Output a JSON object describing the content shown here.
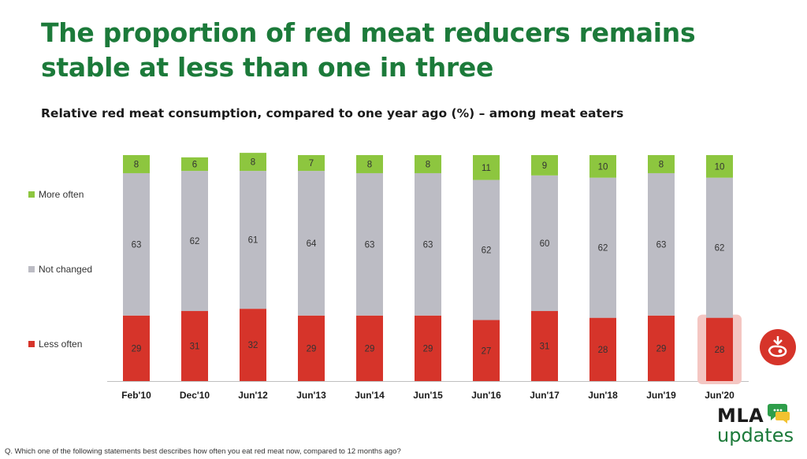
{
  "page": {
    "title": "The proportion of red meat reducers remains stable at less than one in three",
    "subtitle": "Relative red meat consumption, compared to one year ago (%) – among meat eaters",
    "footnote": "Q. Which one of the following statements best describes how often you eat red meat now, compared to 12 months ago?",
    "logo": {
      "line1": "MLA",
      "line2": "updates"
    },
    "icons": {
      "meat": "steak-download-icon",
      "chat": "chat-bubble-icon"
    }
  },
  "colors": {
    "title": "#1c7a3a",
    "more_often": "#8dc63f",
    "not_changed": "#bcbcc4",
    "less_often": "#d6342a",
    "highlight": "#f4c6c2"
  },
  "chart_data": {
    "type": "bar",
    "stacked": true,
    "categories": [
      "Feb'10",
      "Dec'10",
      "Jun'12",
      "Jun'13",
      "Jun'14",
      "Jun'15",
      "Jun'16",
      "Jun'17",
      "Jun'18",
      "Jun'19",
      "Jun'20"
    ],
    "series": [
      {
        "name": "Less often",
        "color": "#d6342a",
        "values": [
          29,
          31,
          32,
          29,
          29,
          29,
          27,
          31,
          28,
          29,
          28
        ]
      },
      {
        "name": "Not changed",
        "color": "#bcbcc4",
        "values": [
          63,
          62,
          61,
          64,
          63,
          63,
          62,
          60,
          62,
          63,
          62
        ]
      },
      {
        "name": "More often",
        "color": "#8dc63f",
        "values": [
          8,
          6,
          8,
          7,
          8,
          8,
          11,
          9,
          10,
          8,
          10
        ]
      }
    ],
    "legend": [
      "More often",
      "Not changed",
      "Less often"
    ],
    "legend_position": "left",
    "highlighted_category": "Jun'20",
    "ylim": [
      0,
      100
    ],
    "grid": false
  }
}
